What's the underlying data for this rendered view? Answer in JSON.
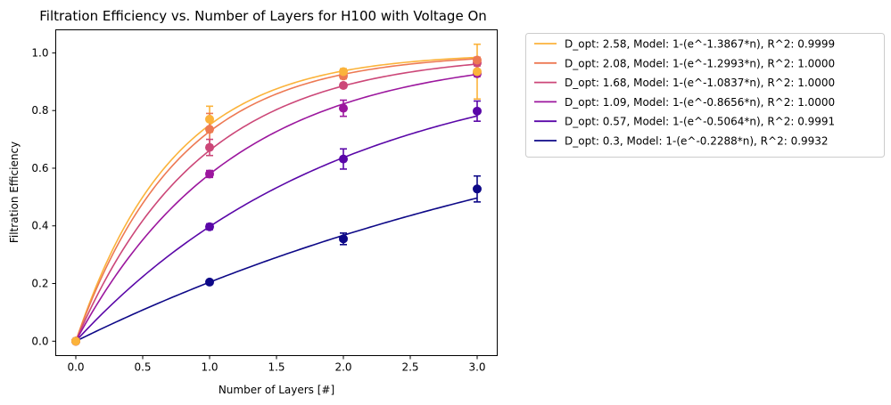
{
  "chart_data": {
    "type": "line",
    "title": "Filtration Efficiency vs. Number of Layers for H100 with Voltage On",
    "xlabel": "Number of Layers [#]",
    "ylabel": "Filtration Efficiency",
    "xlim": [
      -0.15,
      3.15
    ],
    "ylim": [
      -0.05,
      1.08
    ],
    "xticks": [
      0.0,
      0.5,
      1.0,
      1.5,
      2.0,
      2.5,
      3.0
    ],
    "xtick_labels": [
      "0.0",
      "0.5",
      "1.0",
      "1.5",
      "2.0",
      "2.5",
      "3.0"
    ],
    "yticks": [
      0.0,
      0.2,
      0.4,
      0.6,
      0.8,
      1.0
    ],
    "ytick_labels": [
      "0.0",
      "0.2",
      "0.4",
      "0.6",
      "0.8",
      "1.0"
    ],
    "grid": false,
    "legend_position": "outside-right",
    "x": [
      0,
      1,
      2,
      3
    ],
    "series": [
      {
        "name": "D_opt: 2.58, Model: 1-(e^-1.3867*n), R^2: 0.9999",
        "color": "#fbb33b",
        "rate": 1.3867,
        "values": [
          0.0,
          0.77,
          0.935,
          0.935
        ],
        "errors": [
          0.0,
          0.045,
          0.01,
          0.095
        ]
      },
      {
        "name": "D_opt: 2.08, Model: 1-(e^-1.2993*n), R^2: 1.0000",
        "color": "#ed7953",
        "rate": 1.2993,
        "values": [
          0.0,
          0.735,
          0.92,
          0.975
        ],
        "errors": [
          0.0,
          0.055,
          0.01,
          0.01
        ]
      },
      {
        "name": "D_opt: 1.68, Model: 1-(e^-1.0837*n), R^2: 1.0000",
        "color": "#cc4778",
        "rate": 1.0837,
        "values": [
          0.0,
          0.672,
          0.887,
          0.965
        ],
        "errors": [
          0.0,
          0.028,
          0.008,
          0.01
        ]
      },
      {
        "name": "D_opt: 1.09, Model: 1-(e^-0.8656*n), R^2: 1.0000",
        "color": "#9c179e",
        "rate": 0.8656,
        "values": [
          0.0,
          0.58,
          0.808,
          0.928
        ],
        "errors": [
          0.0,
          0.012,
          0.028,
          0.01
        ]
      },
      {
        "name": "D_opt: 0.57, Model: 1-(e^-0.5064*n), R^2: 0.9991",
        "color": "#5a07a8",
        "rate": 0.5064,
        "values": [
          0.0,
          0.397,
          0.632,
          0.798
        ],
        "errors": [
          0.0,
          0.01,
          0.035,
          0.035
        ]
      },
      {
        "name": "D_opt: 0.3, Model: 1-(e^-0.2288*n), R^2: 0.9932",
        "color": "#0d0887",
        "rate": 0.2288,
        "values": [
          0.0,
          0.205,
          0.355,
          0.528
        ],
        "errors": [
          0.0,
          0.005,
          0.02,
          0.045
        ]
      }
    ]
  }
}
